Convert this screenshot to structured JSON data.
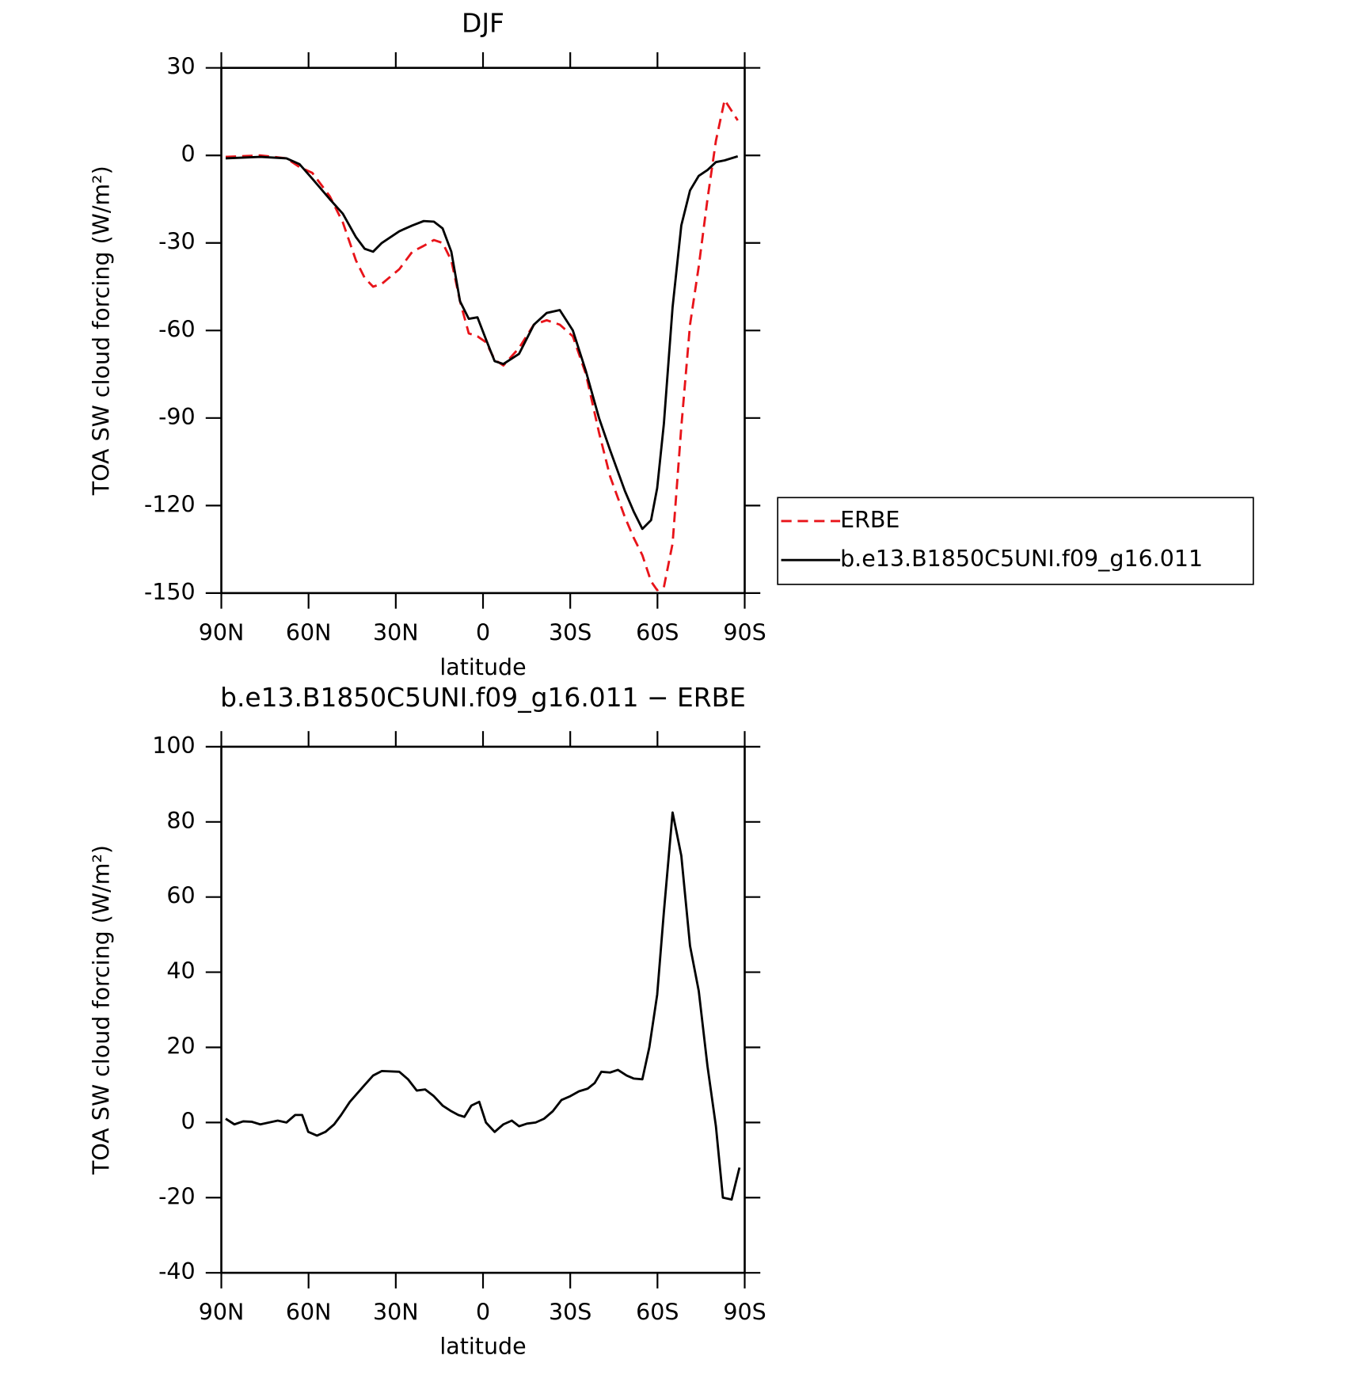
{
  "chart_data": [
    {
      "type": "line",
      "title": "DJF",
      "xlabel": "latitude",
      "ylabel": "TOA SW cloud forcing (W/m²)",
      "xlim": [
        90,
        -90
      ],
      "xticks": [
        {
          "value": 90,
          "label": "90N"
        },
        {
          "value": 60,
          "label": "60N"
        },
        {
          "value": 30,
          "label": "30N"
        },
        0,
        {
          "value": -30,
          "label": "30S"
        },
        {
          "value": -60,
          "label": "60S"
        },
        {
          "value": -90,
          "label": "90S"
        }
      ],
      "ylim": [
        -150,
        30
      ],
      "yticks": [
        -150,
        -120,
        -90,
        -60,
        -30,
        0,
        30
      ],
      "legend": "right",
      "x": [
        88.5,
        76.6,
        67.6,
        63.1,
        58.7,
        52.7,
        48.2,
        43.7,
        40.7,
        37.8,
        34.8,
        28.8,
        24.3,
        20.4,
        16.9,
        13.9,
        10.9,
        7.9,
        4.9,
        1.9,
        -1.0,
        -4.0,
        -7.0,
        -12.4,
        -17.5,
        -21.9,
        -26.4,
        -30.9,
        -35.4,
        -39.9,
        -43.7,
        -48.8,
        -51.8,
        -54.8,
        -57.8,
        -59.9,
        -62.2,
        -65.2,
        -68.2,
        -71.2,
        -74.2,
        -77.2,
        -80.1,
        -83.1,
        -87.6
      ],
      "series": [
        {
          "name": "ERBE",
          "color": "#e8141a",
          "dash": true,
          "values": [
            -0.5,
            0,
            -1,
            -4,
            -6,
            -14,
            -23,
            -36,
            -42,
            -45,
            -44,
            -39,
            -33,
            -31,
            -29,
            -30,
            -36,
            -50,
            -61,
            -62,
            -64,
            -70,
            -72,
            -66,
            -58,
            -56.5,
            -58,
            -62,
            -75,
            -95,
            -110,
            -124,
            -131,
            -137,
            -146,
            -149,
            -148,
            -133,
            -93,
            -58,
            -38,
            -15,
            5,
            19,
            12
          ]
        },
        {
          "name": "b.e13.B1850C5UNI.f09_g16.011",
          "color": "#000000",
          "dash": false,
          "values": [
            -1,
            -0.5,
            -1,
            -3,
            -8,
            -15,
            -20,
            -28,
            -32,
            -33,
            -30,
            -26,
            -24,
            -22.5,
            -22.7,
            -25,
            -33,
            -50,
            -56,
            -55.5,
            -63,
            -70.5,
            -71.5,
            -68,
            -58,
            -54,
            -53,
            -60,
            -74,
            -90,
            -101,
            -115,
            -122,
            -128,
            -125,
            -114,
            -92,
            -52,
            -24,
            -12,
            -7,
            -5,
            -2.3,
            -1.7,
            -0.3
          ]
        }
      ]
    },
    {
      "type": "line",
      "title": "b.e13.B1850C5UNI.f09_g16.011 − ERBE",
      "xlabel": "latitude",
      "ylabel": "TOA SW cloud forcing (W/m²)",
      "xlim": [
        90,
        -90
      ],
      "xticks": [
        {
          "value": 90,
          "label": "90N"
        },
        {
          "value": 60,
          "label": "60N"
        },
        {
          "value": 30,
          "label": "30N"
        },
        0,
        {
          "value": -30,
          "label": "30S"
        },
        {
          "value": -60,
          "label": "60S"
        },
        {
          "value": -90,
          "label": "90S"
        }
      ],
      "ylim": [
        -40,
        100
      ],
      "yticks": [
        -40,
        -20,
        0,
        20,
        40,
        60,
        80,
        100
      ],
      "x": [
        88.5,
        85.5,
        82.5,
        79.6,
        76.6,
        73.6,
        70.6,
        67.6,
        64.6,
        62.2,
        60.1,
        57.1,
        54.2,
        51.2,
        48.8,
        45.8,
        40.7,
        37.8,
        34.8,
        28.8,
        25.8,
        22.8,
        19.9,
        16.9,
        13.9,
        10.9,
        8.5,
        6.4,
        4.0,
        1.3,
        -1.0,
        -4.0,
        -7.0,
        -9.9,
        -12.4,
        -15.1,
        -18.1,
        -21.0,
        -24.0,
        -27.0,
        -30.0,
        -33.0,
        -36.0,
        -38.4,
        -40.7,
        -43.7,
        -46.4,
        -49.4,
        -51.8,
        -54.8,
        -57.2,
        -59.9,
        -62.2,
        -65.2,
        -68.2,
        -71.2,
        -74.2,
        -77.2,
        -80.1,
        -82.5,
        -85.5,
        -88.2
      ],
      "series": [
        {
          "color": "#000000",
          "dash": false,
          "values": [
            1,
            -0.5,
            0.3,
            0.2,
            -0.5,
            0,
            0.5,
            0,
            2,
            2,
            -2.5,
            -3.5,
            -2.5,
            -0.5,
            2,
            5.5,
            10,
            12.5,
            13.7,
            13.5,
            11.5,
            8.5,
            8.8,
            7,
            4.5,
            3,
            2,
            1.5,
            4.5,
            5.5,
            0,
            -2.5,
            -0.5,
            0.5,
            -1,
            -0.3,
            0,
            1,
            3,
            6,
            7,
            8.3,
            9,
            10.5,
            13.5,
            13.3,
            14,
            12.5,
            11.7,
            11.5,
            20,
            34,
            56,
            82.5,
            71,
            47,
            35,
            15,
            -1,
            -20,
            -20.5,
            -12
          ]
        }
      ]
    }
  ]
}
